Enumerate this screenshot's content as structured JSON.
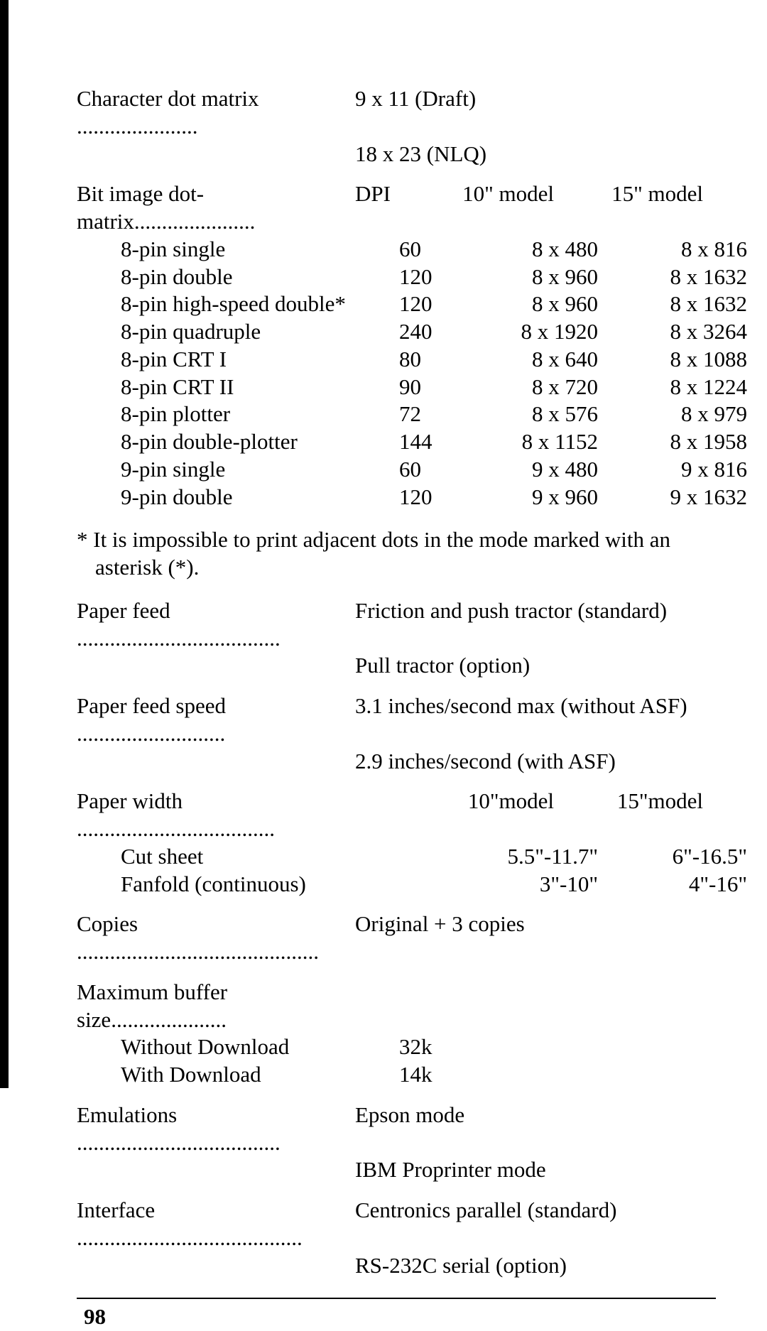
{
  "char_matrix": {
    "label": "Character dot matrix",
    "dots": "......................",
    "line1": "9 x 11 (Draft)",
    "line2": "18 x 23 (NLQ)"
  },
  "bit_image": {
    "label": "Bit image dot-matrix",
    "dots": "......................",
    "hdr_dpi": "DPI",
    "hdr_10": "10\" model",
    "hdr_15": "15\" model",
    "rows": [
      {
        "name": "8-pin single",
        "dpi": "60",
        "m10": "8 x 480",
        "m15": "8 x 816"
      },
      {
        "name": "8-pin double",
        "dpi": "120",
        "m10": "8 x 960",
        "m15": "8 x 1632"
      },
      {
        "name": "8-pin high-speed double*",
        "dpi": "120",
        "m10": "8 x 960",
        "m15": "8 x 1632"
      },
      {
        "name": "8-pin quadruple",
        "dpi": "240",
        "m10": "8 x 1920",
        "m15": "8 x 3264"
      },
      {
        "name": "8-pin CRT I",
        "dpi": "80",
        "m10": "8 x 640",
        "m15": "8 x 1088"
      },
      {
        "name": "8-pin CRT II",
        "dpi": "90",
        "m10": "8 x 720",
        "m15": "8 x 1224"
      },
      {
        "name": "8-pin plotter",
        "dpi": "72",
        "m10": "8 x 576",
        "m15": "8 x 979"
      },
      {
        "name": "8-pin double-plotter",
        "dpi": "144",
        "m10": "8 x 1152",
        "m15": "8 x 1958"
      },
      {
        "name": "9-pin single",
        "dpi": "60",
        "m10": "9 x 480",
        "m15": "9 x 816"
      },
      {
        "name": "9-pin double",
        "dpi": "120",
        "m10": "9 x 960",
        "m15": "9 x 1632"
      }
    ]
  },
  "footnote": "* It is impossible to print adjacent dots in the mode marked with an asterisk (*).",
  "paper_feed": {
    "label": "Paper feed",
    "dots": ".....................................",
    "line1": "Friction and push tractor (standard)",
    "line2": "Pull tractor (option)"
  },
  "paper_feed_speed": {
    "label": "Paper feed speed",
    "dots": "...........................",
    "line1": "3.1 inches/second max (without ASF)",
    "line2": "2.9 inches/second (with ASF)"
  },
  "paper_width": {
    "label": "Paper width",
    "dots": "....................................",
    "hdr_10": "10\"model",
    "hdr_15": "15\"model",
    "rows": [
      {
        "name": "Cut sheet",
        "m10": "5.5\"-11.7\"",
        "m15": "6\"-16.5\""
      },
      {
        "name": "Fanfold (continuous)",
        "m10": "3\"-10\"",
        "m15": "4\"-16\""
      }
    ]
  },
  "copies": {
    "label": "Copies",
    "dots": "............................................",
    "value": "Original + 3 copies"
  },
  "buffer": {
    "label": "Maximum buffer size",
    "dots": ".....................",
    "rows": [
      {
        "name": "Without Download",
        "val": "32k"
      },
      {
        "name": "With Download",
        "val": "14k"
      }
    ]
  },
  "emulations": {
    "label": "Emulations",
    "dots": ".....................................",
    "line1": "Epson mode",
    "line2": "IBM Proprinter mode"
  },
  "interface": {
    "label": "Interface",
    "dots": ".........................................",
    "line1": "Centronics parallel (standard)",
    "line2": "RS-232C serial (option)"
  },
  "page_number": "98"
}
